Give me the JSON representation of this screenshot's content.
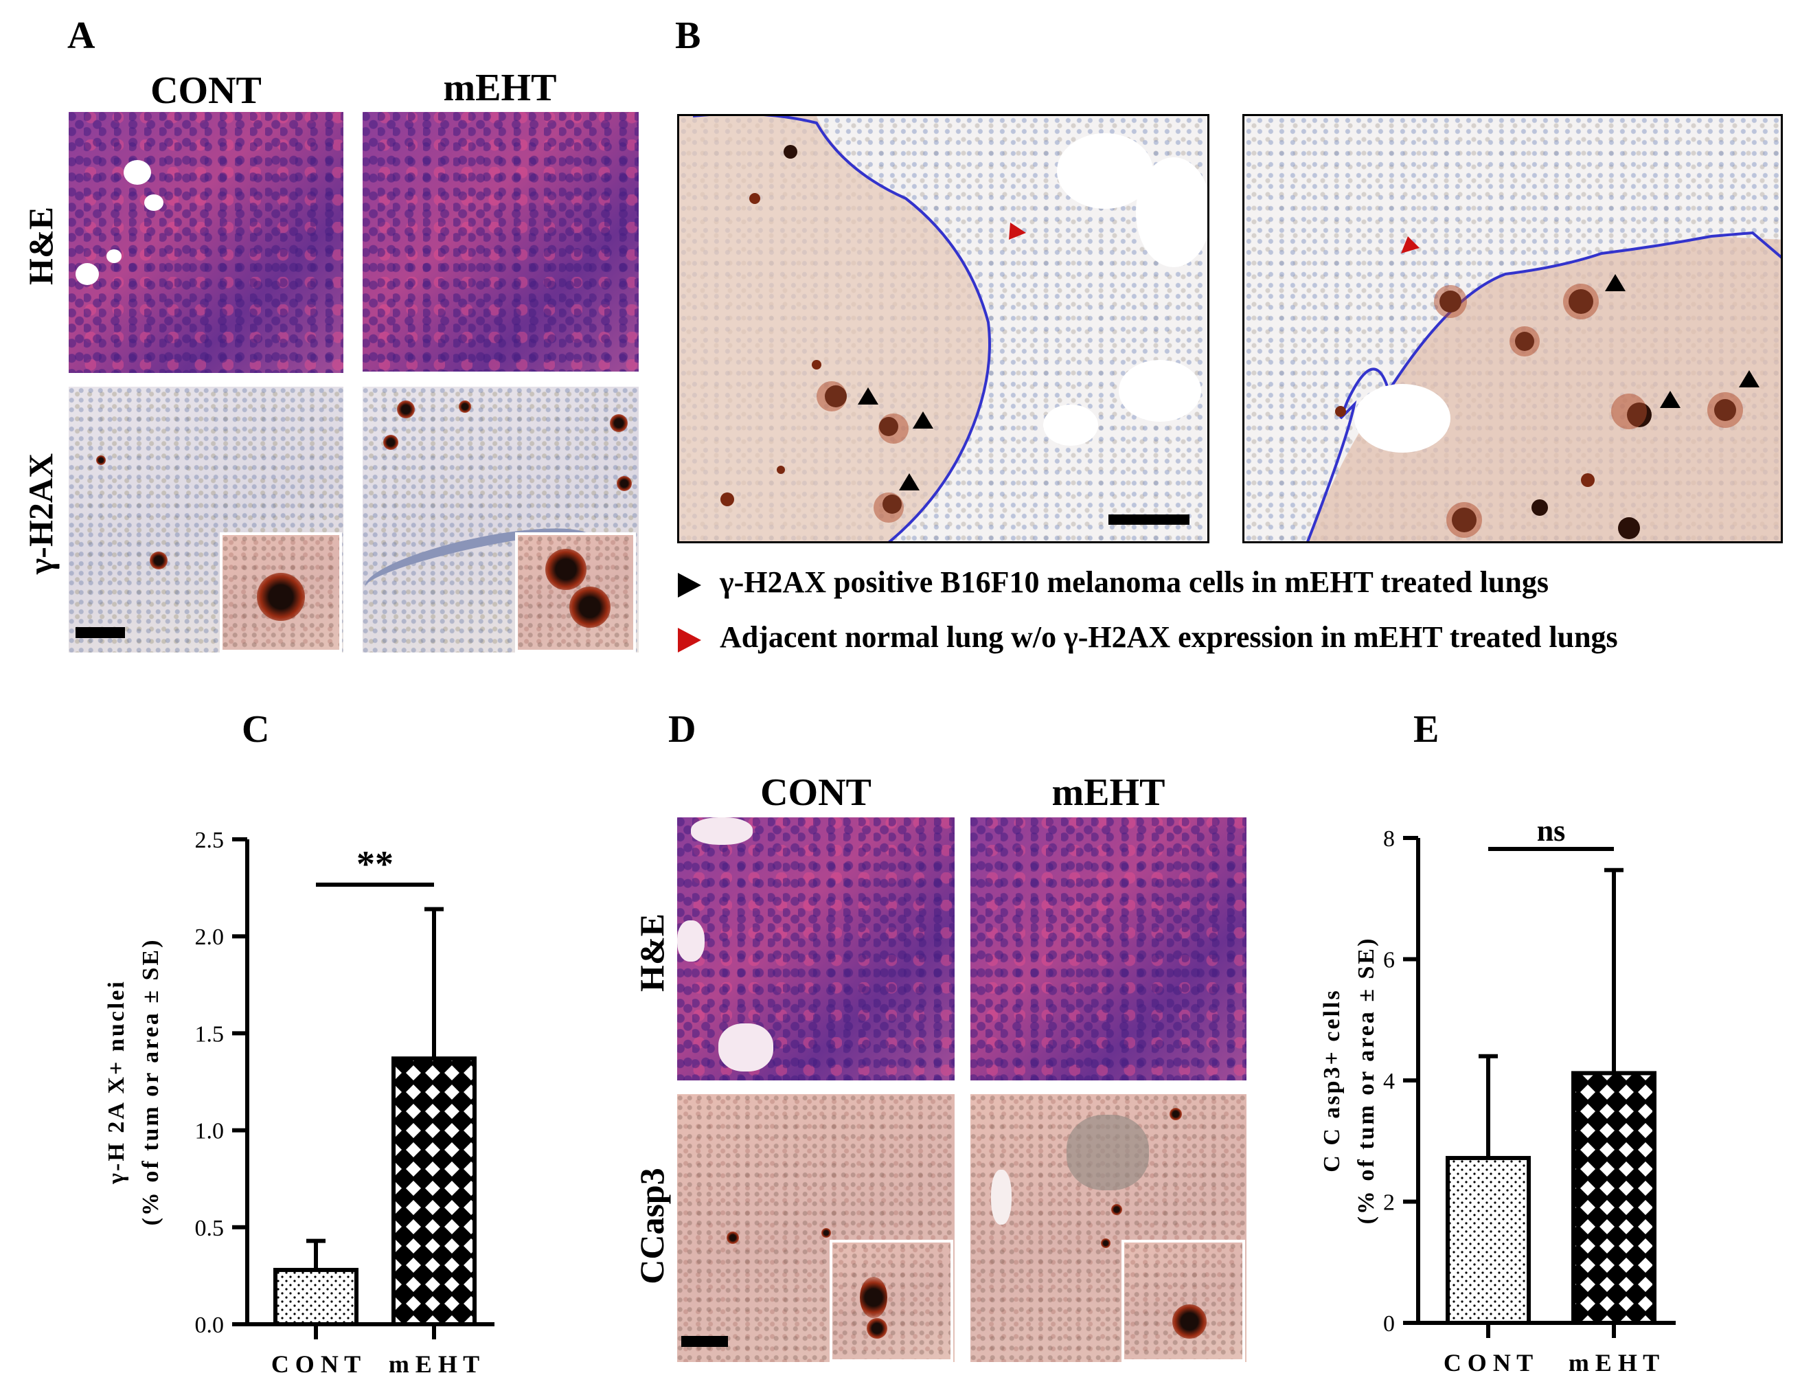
{
  "panels": {
    "A": {
      "letter": "A",
      "col_labels": [
        "CONT",
        "mEHT"
      ],
      "row_labels": [
        "H&E",
        "γ-H2AX"
      ]
    },
    "B": {
      "letter": "B",
      "legend": [
        {
          "marker_color": "#000000",
          "text": "γ-H2AX positive B16F10 melanoma cells in mEHT treated lungs"
        },
        {
          "marker_color": "#cc1111",
          "text": "Adjacent normal lung w/o γ-H2AX expression in mEHT treated lungs"
        }
      ]
    },
    "C": {
      "letter": "C"
    },
    "D": {
      "letter": "D",
      "col_labels": [
        "CONT",
        "mEHT"
      ],
      "row_labels": [
        "H&E",
        "CCasp3"
      ]
    },
    "E": {
      "letter": "E"
    }
  },
  "colors": {
    "tumor_border": "#3333cc",
    "arrow_black": "#000000",
    "arrow_red": "#cc1111"
  },
  "chart_data": [
    {
      "panel": "C",
      "type": "bar",
      "categories": [
        "CONT",
        "mEHT"
      ],
      "values": [
        0.28,
        1.37
      ],
      "errors": [
        0.15,
        0.77
      ],
      "patterns": [
        "dots",
        "checker"
      ],
      "ylabel_lines": [
        "γ-H 2A X+ nuclei",
        "(% of tum or area ± SE)"
      ],
      "ylim": [
        0.0,
        2.5
      ],
      "yticks": [
        "0.0",
        "0.5",
        "1.0",
        "1.5",
        "2.0",
        "2.5"
      ],
      "xtick_labels": [
        "C O N T",
        "m E H T"
      ],
      "significance": "**"
    },
    {
      "panel": "E",
      "type": "bar",
      "categories": [
        "CONT",
        "mEHT"
      ],
      "values": [
        2.72,
        4.12
      ],
      "errors": [
        1.68,
        3.35
      ],
      "patterns": [
        "dots",
        "checker"
      ],
      "ylabel_lines": [
        "C C asp3+ cells",
        "(% of tum or area ± SE)"
      ],
      "ylim": [
        0,
        8
      ],
      "yticks": [
        "0",
        "2",
        "4",
        "6",
        "8"
      ],
      "xtick_labels": [
        "C O N T",
        "m E H T"
      ],
      "significance": "ns"
    }
  ]
}
